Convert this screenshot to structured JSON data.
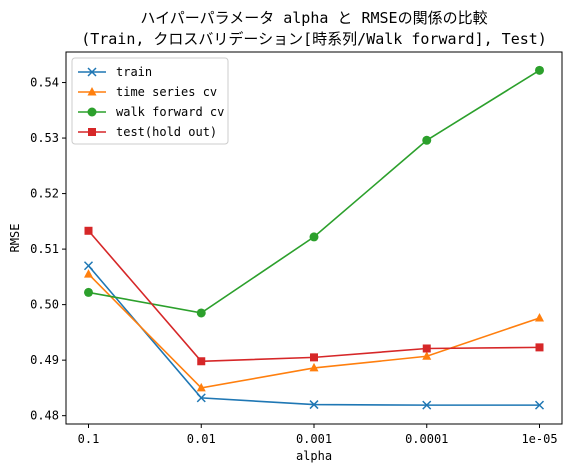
{
  "chart_data": {
    "type": "line",
    "title_line1": "ハイパーパラメータ alpha と RMSEの関係の比較",
    "title_line2": "(Train, クロスバリデーション[時系列/Walk forward], Test)",
    "xlabel": "alpha",
    "ylabel": "RMSE",
    "categories": [
      "0.1",
      "0.01",
      "0.001",
      "0.0001",
      "1e-05"
    ],
    "ylim": [
      0.4785,
      0.5455
    ],
    "yticks": [
      0.48,
      0.49,
      0.5,
      0.51,
      0.52,
      0.53,
      0.54
    ],
    "ytick_labels": [
      "0.48",
      "0.49",
      "0.50",
      "0.51",
      "0.52",
      "0.53",
      "0.54"
    ],
    "grid": false,
    "legend_position": "upper left",
    "series": [
      {
        "name": "train",
        "color": "#1f77b4",
        "marker": "x",
        "values": [
          0.507,
          0.4832,
          0.482,
          0.4819,
          0.4819
        ]
      },
      {
        "name": "time series cv",
        "color": "#ff7f0e",
        "marker": "triangle",
        "values": [
          0.5055,
          0.485,
          0.4886,
          0.4907,
          0.4976
        ]
      },
      {
        "name": "walk forward cv",
        "color": "#2ca02c",
        "marker": "circle",
        "values": [
          0.5022,
          0.4985,
          0.5122,
          0.5296,
          0.5422
        ]
      },
      {
        "name": "test(hold out)",
        "color": "#d62728",
        "marker": "square",
        "values": [
          0.5133,
          0.4898,
          0.4905,
          0.4921,
          0.4923
        ]
      }
    ]
  }
}
